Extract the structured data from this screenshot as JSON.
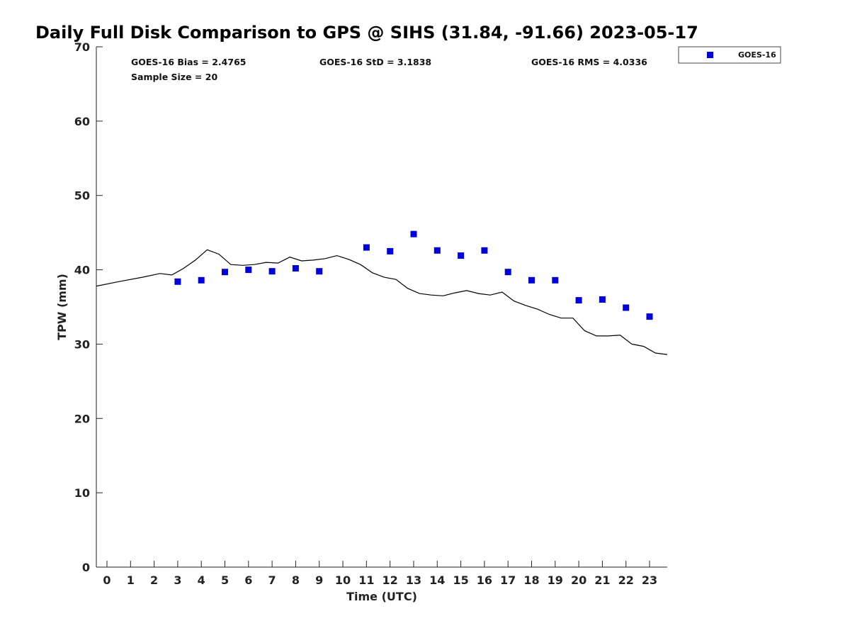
{
  "chart_data": {
    "type": "scatter",
    "title": "Daily Full Disk Comparison to GPS @ SIHS (31.84, -91.66) 2023-05-17",
    "xlabel": "Time (UTC)",
    "ylabel": "TPW (mm)",
    "xlim": [
      -0.45,
      23.75
    ],
    "ylim": [
      0,
      70
    ],
    "x_ticks": [
      0,
      1,
      2,
      3,
      4,
      5,
      6,
      7,
      8,
      9,
      10,
      11,
      12,
      13,
      14,
      15,
      16,
      17,
      18,
      19,
      20,
      21,
      22,
      23
    ],
    "y_ticks": [
      0,
      10,
      20,
      30,
      40,
      50,
      60,
      70
    ],
    "grid": false,
    "legend_position": "top-right, outside plot",
    "stats": {
      "bias": "GOES-16 Bias = 2.4765",
      "std": "GOES-16 StD = 3.1838",
      "rms": "GOES-16 RMS = 4.0336",
      "sample_size": "Sample Size = 20"
    },
    "series": [
      {
        "name": "GOES-16",
        "kind": "scatter",
        "marker": "square",
        "color": "#0000dd",
        "x": [
          3,
          4,
          5,
          6,
          7,
          8,
          9,
          11,
          12,
          13,
          14,
          15,
          16,
          17,
          18,
          19,
          20,
          21,
          22,
          23
        ],
        "y": [
          38.4,
          38.6,
          39.7,
          40.0,
          39.8,
          40.2,
          39.8,
          43.0,
          42.5,
          44.8,
          42.6,
          41.9,
          42.6,
          39.7,
          38.6,
          38.6,
          35.9,
          36.0,
          34.9,
          33.7
        ]
      },
      {
        "kind": "line",
        "color": "#000000",
        "x": [
          -0.45,
          0.5,
          1.5,
          2.25,
          2.75,
          3.25,
          3.75,
          4.25,
          4.75,
          5.25,
          5.75,
          6.25,
          6.75,
          7.25,
          7.75,
          8.25,
          8.75,
          9.25,
          9.75,
          10.25,
          10.75,
          11.25,
          11.75,
          12.25,
          12.75,
          13.25,
          13.75,
          14.25,
          14.75,
          15.25,
          15.75,
          16.25,
          16.75,
          17.25,
          17.75,
          18.25,
          18.75,
          19.25,
          19.75,
          20.25,
          20.75,
          21.25,
          21.75,
          22.25,
          22.75,
          23.25,
          23.75
        ],
        "y": [
          37.8,
          38.4,
          39.0,
          39.5,
          39.3,
          40.2,
          41.3,
          42.7,
          42.1,
          40.7,
          40.6,
          40.7,
          41.0,
          40.9,
          41.7,
          41.2,
          41.3,
          41.5,
          41.9,
          41.4,
          40.7,
          39.6,
          39.0,
          38.7,
          37.5,
          36.8,
          36.6,
          36.5,
          36.9,
          37.2,
          36.8,
          36.6,
          37.0,
          35.8,
          35.2,
          34.7,
          34.0,
          33.5,
          33.5,
          31.8,
          31.1,
          31.1,
          31.2,
          30.0,
          29.7,
          28.8,
          28.6
        ]
      }
    ]
  }
}
